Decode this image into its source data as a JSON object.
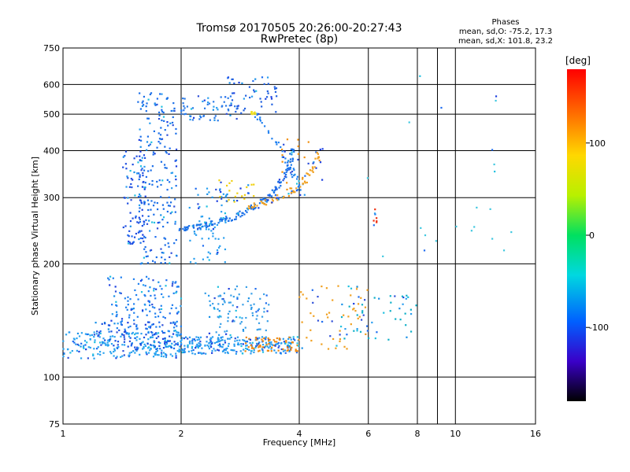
{
  "chart_data": {
    "type": "scatter",
    "title": "Tromsø 20170505 20:26:00-20:27:43",
    "subtitle": "RwPretec (8p)",
    "xlabel": "Frequency [MHz]",
    "ylabel": "Stationary phase Virtual Height [km]",
    "x_scale": "log",
    "y_scale": "log",
    "xlim": [
      1,
      16
    ],
    "ylim": [
      75,
      750
    ],
    "x_ticks": [
      1,
      2,
      4,
      6,
      8,
      10,
      16
    ],
    "y_ticks": [
      75,
      100,
      200,
      300,
      400,
      500,
      600,
      750
    ],
    "x_minor_ticks": [
      9
    ],
    "grid": true,
    "stats": {
      "header": "Phases",
      "line_o": "mean, sd,O: -75.2, 17.3",
      "line_x": "mean, sd,X: 101.8, 23.2"
    },
    "colorbar": {
      "label": "[deg]",
      "ticks": [
        100,
        0,
        -100
      ],
      "range": [
        -180,
        180
      ]
    },
    "clusters": [
      {
        "name": "lower-trace",
        "x": [
          1.0,
          2.0
        ],
        "y": [
          112,
          132
        ],
        "color": "#2aa4f0",
        "count": 220
      },
      {
        "name": "lower-trace-dark",
        "x": [
          1.2,
          2.0
        ],
        "y": [
          118,
          140
        ],
        "color": "#1650e0",
        "count": 90
      },
      {
        "name": "lower-scatter",
        "x": [
          1.3,
          2.0
        ],
        "y": [
          130,
          185
        ],
        "color": "#2080f0",
        "count": 150
      },
      {
        "name": "column-1.7",
        "x": [
          1.55,
          1.95
        ],
        "y": [
          200,
          570
        ],
        "color": "#1a6ee8",
        "count": 220
      },
      {
        "name": "column-1.5",
        "x": [
          1.42,
          1.62
        ],
        "y": [
          225,
          400
        ],
        "color": "#1e4ee0",
        "count": 80
      },
      {
        "name": "trace-2.0-4.0",
        "x": [
          2.0,
          4.0
        ],
        "y": [
          115,
          128
        ],
        "color": "#2a9ef0",
        "count": 220
      },
      {
        "name": "trace-orange",
        "x": [
          2.9,
          4.0
        ],
        "y": [
          117,
          128
        ],
        "color": "#f08a10",
        "count": 90
      },
      {
        "name": "scatter-2.4-3.3",
        "x": [
          2.3,
          3.4
        ],
        "y": [
          125,
          175
        ],
        "color": "#3aa0e8",
        "count": 100
      },
      {
        "name": "scatter-4.0-6.0",
        "x": [
          4.0,
          6.0
        ],
        "y": [
          118,
          175
        ],
        "color": "#f0a020",
        "count": 60
      },
      {
        "name": "scatter-5-8",
        "x": [
          5.0,
          8.0
        ],
        "y": [
          125,
          165
        ],
        "color": "#10b0c8",
        "count": 45
      },
      {
        "name": "top-2.0-2.8",
        "x": [
          2.0,
          2.8
        ],
        "y": [
          480,
          560
        ],
        "color": "#2a7ae8",
        "count": 60
      },
      {
        "name": "trace-2.1-2.6",
        "x": [
          2.1,
          2.6
        ],
        "y": [
          200,
          320
        ],
        "color": "#2aa0f0",
        "count": 70
      },
      {
        "name": "upper-2.6-3.5",
        "x": [
          2.6,
          3.5
        ],
        "y": [
          500,
          630
        ],
        "color": "#2060e0",
        "count": 50
      },
      {
        "name": "fx-yellow",
        "x": [
          2.5,
          3.1
        ],
        "y": [
          290,
          335
        ],
        "color": "#f0d010",
        "count": 30
      },
      {
        "name": "orange-4-4.6",
        "x": [
          3.6,
          4.6
        ],
        "y": [
          300,
          430
        ],
        "color": "#f09010",
        "count": 30
      },
      {
        "name": "red-6.2",
        "x": [
          6.15,
          6.3
        ],
        "y": [
          250,
          280
        ],
        "color": "#f03010",
        "count": 8
      },
      {
        "name": "sparse-right",
        "x": [
          5.5,
          14.0
        ],
        "y": [
          190,
          650
        ],
        "color": "#40c8e0",
        "count": 22
      }
    ],
    "curve_f2": {
      "x": [
        2.0,
        2.15,
        2.3,
        2.5,
        2.7,
        2.9,
        3.1,
        3.3,
        3.5,
        3.65,
        3.78,
        3.88
      ],
      "y": [
        248,
        250,
        254,
        260,
        266,
        275,
        285,
        298,
        315,
        340,
        370,
        410
      ],
      "color": "#1a70e8"
    },
    "curve_f2_x": {
      "x": [
        2.9,
        3.1,
        3.3,
        3.5,
        3.7,
        3.9,
        4.1,
        4.3,
        4.45,
        4.55
      ],
      "y": [
        282,
        287,
        292,
        298,
        305,
        315,
        330,
        355,
        380,
        405
      ],
      "color": "#f0a020"
    },
    "curve_upper": {
      "x": [
        3.0,
        3.2,
        3.4,
        3.6,
        3.75,
        3.85,
        3.95,
        4.0
      ],
      "y": [
        520,
        480,
        440,
        400,
        370,
        350,
        330,
        315
      ],
      "color": "#2080f0"
    },
    "spot_yellow": {
      "x": 3.05,
      "y": 503,
      "color": "#f0e020",
      "count": 10
    }
  }
}
